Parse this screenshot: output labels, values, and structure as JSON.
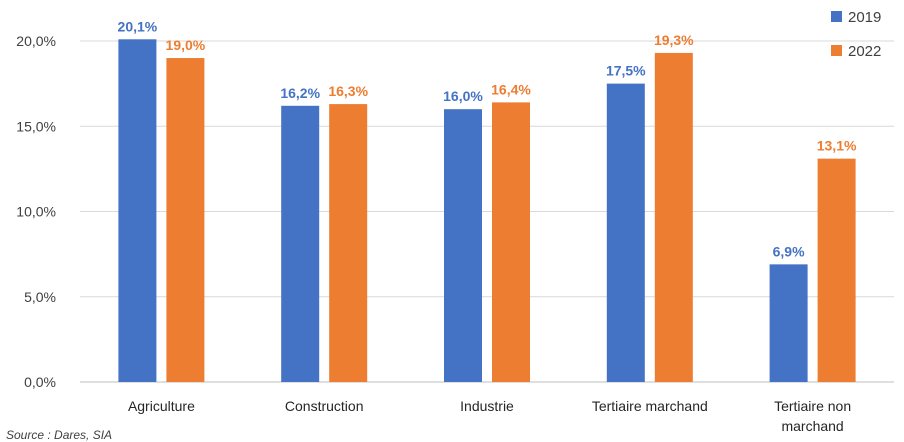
{
  "chart_data": {
    "type": "bar",
    "categories": [
      "Agriculture",
      "Construction",
      "Industrie",
      "Tertiaire marchand",
      "Tertiaire non marchand"
    ],
    "category_lines": [
      [
        "Agriculture"
      ],
      [
        "Construction"
      ],
      [
        "Industrie"
      ],
      [
        "Tertiaire marchand"
      ],
      [
        "Tertiaire non",
        "marchand"
      ]
    ],
    "series": [
      {
        "name": "2019",
        "color": "#4472C4",
        "values": [
          20.1,
          16.2,
          16.0,
          17.5,
          6.9
        ],
        "labels": [
          "20,1%",
          "16,2%",
          "16,0%",
          "17,5%",
          "6,9%"
        ]
      },
      {
        "name": "2022",
        "color": "#ED7D31",
        "values": [
          19.0,
          16.3,
          16.4,
          19.3,
          13.1
        ],
        "labels": [
          "19,0%",
          "16,3%",
          "16,4%",
          "19,3%",
          "13,1%"
        ]
      }
    ],
    "y_ticks": [
      0,
      5,
      10,
      15,
      20
    ],
    "y_tick_labels": [
      "0,0%",
      "5,0%",
      "10,0%",
      "15,0%",
      "20,0%"
    ],
    "ylim": [
      0,
      20
    ],
    "grid": true,
    "legend_position": "top-right",
    "source": "Source : Dares, SIA"
  }
}
